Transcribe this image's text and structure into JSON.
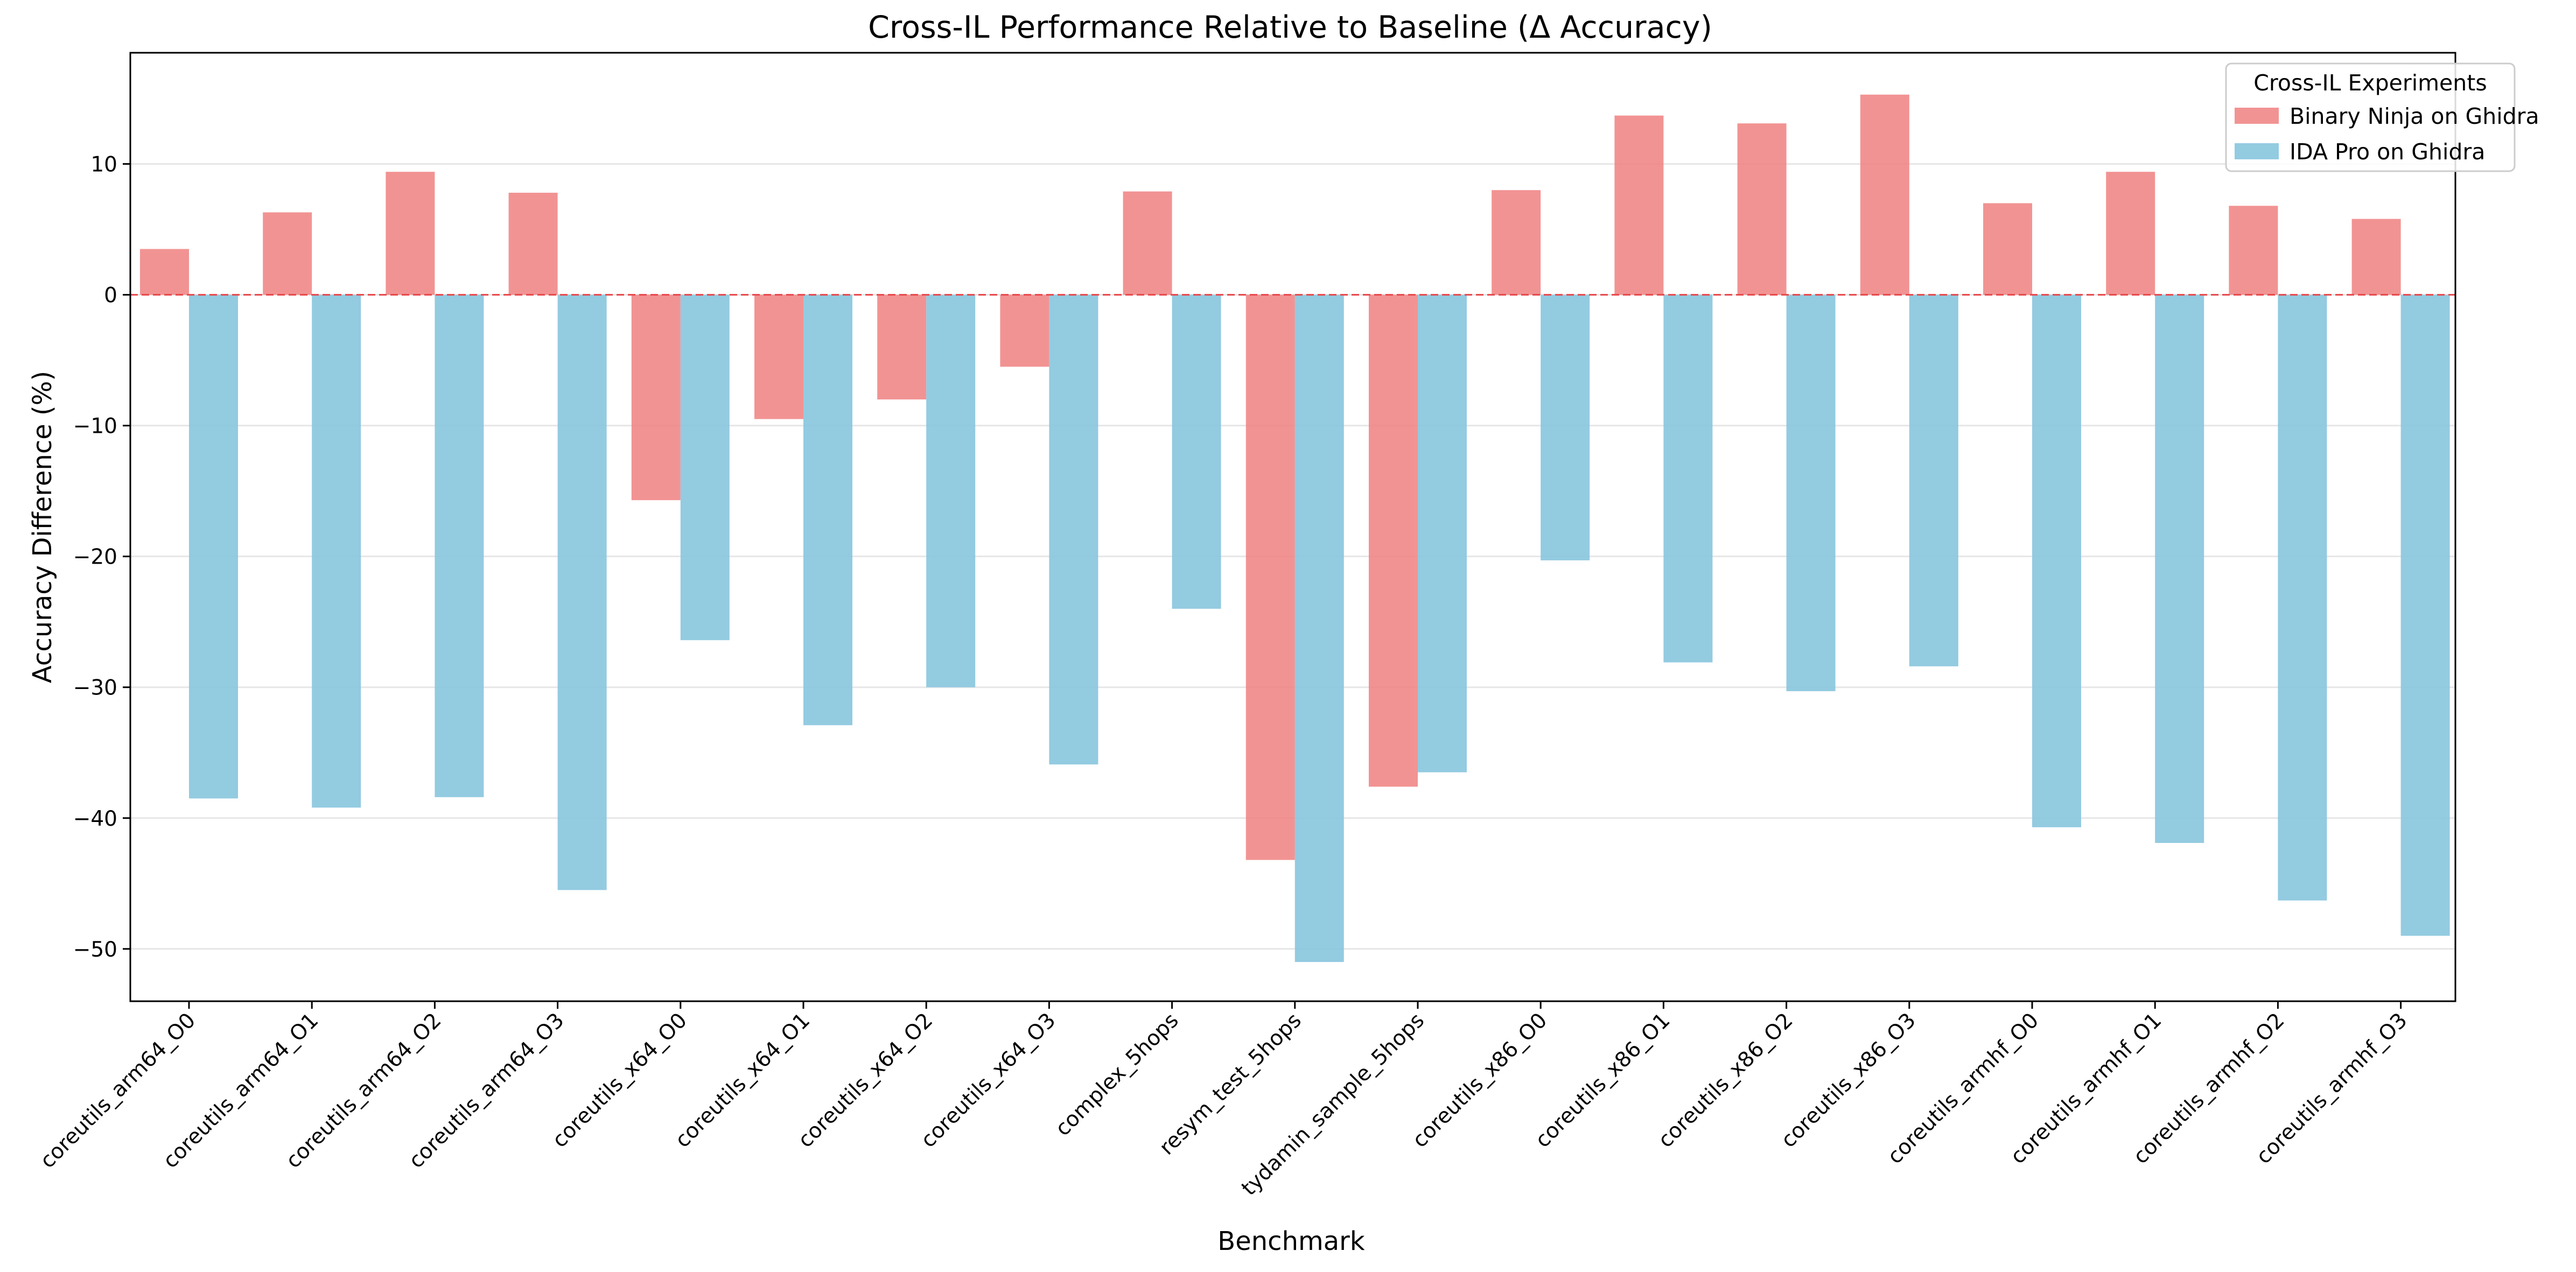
{
  "chart_data": {
    "type": "bar",
    "title": "Cross-IL Performance Relative to Baseline (Δ Accuracy)",
    "xlabel": "Benchmark",
    "ylabel": "Accuracy Difference (%)",
    "ylim": [
      -54,
      18.5
    ],
    "yticks": [
      10,
      0,
      -10,
      -20,
      -30,
      -40,
      -50
    ],
    "ytick_labels": [
      "10",
      "0",
      "−10",
      "−20",
      "−30",
      "−40",
      "−50"
    ],
    "grid": "horizontal",
    "baseline": {
      "value": 0,
      "style": "dashed",
      "color": "#e8474b"
    },
    "categories": [
      "coreutils_arm64_O0",
      "coreutils_arm64_O1",
      "coreutils_arm64_O2",
      "coreutils_arm64_O3",
      "coreutils_x64_O0",
      "coreutils_x64_O1",
      "coreutils_x64_O2",
      "coreutils_x64_O3",
      "complex_5hops",
      "resym_test_5hops",
      "tydamin_sample_5hops",
      "coreutils_x86_O0",
      "coreutils_x86_O1",
      "coreutils_x86_O2",
      "coreutils_x86_O3",
      "coreutils_armhf_O0",
      "coreutils_armhf_O1",
      "coreutils_armhf_O2",
      "coreutils_armhf_O3"
    ],
    "series": [
      {
        "name": "Binary Ninja on Ghidra",
        "color": "#f08080",
        "values": [
          3.5,
          6.3,
          9.4,
          7.8,
          -15.7,
          -9.5,
          -8.0,
          -5.5,
          7.9,
          -43.2,
          -37.6,
          8.0,
          13.7,
          13.1,
          15.3,
          7.0,
          9.4,
          6.8,
          5.8
        ]
      },
      {
        "name": "IDA Pro on Ghidra",
        "color": "#87c5de",
        "values": [
          -38.5,
          -39.2,
          -38.4,
          -45.5,
          -26.4,
          -32.9,
          -30.0,
          -35.9,
          -24.0,
          -51.0,
          -36.5,
          -20.3,
          -28.1,
          -30.3,
          -28.4,
          -40.7,
          -41.9,
          -46.3,
          -49.0
        ]
      }
    ],
    "legend": {
      "title": "Cross-IL Experiments",
      "placement": "top-right"
    }
  }
}
